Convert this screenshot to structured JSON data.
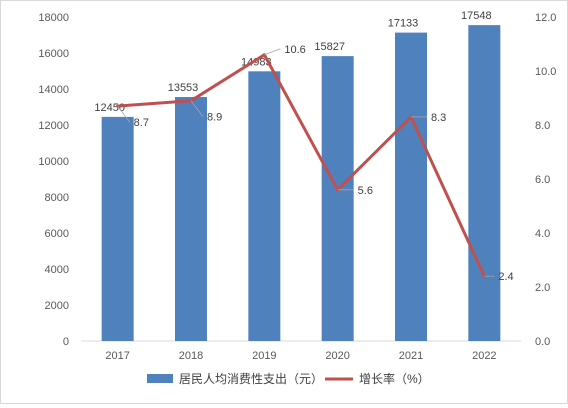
{
  "chart_data": {
    "type": "bar+line",
    "categories": [
      "2017",
      "2018",
      "2019",
      "2020",
      "2021",
      "2022"
    ],
    "series": [
      {
        "name": "居民人均消费性支出（元）",
        "type": "bar",
        "axis": "left",
        "values": [
          12450,
          13553,
          14983,
          15827,
          17133,
          17548
        ],
        "color": "#4f81bd"
      },
      {
        "name": "增长率（%）",
        "type": "line",
        "axis": "right",
        "values": [
          8.7,
          8.9,
          10.6,
          5.6,
          8.3,
          2.4
        ],
        "labels": [
          "8.7",
          "8.9",
          "10.6",
          "5.6",
          "8.3",
          "2.4"
        ],
        "color": "#c0504d"
      }
    ],
    "bar_labels": [
      "12450",
      "13553",
      "14983",
      "15827",
      "17133",
      "17548"
    ],
    "ylim_left": [
      0,
      18000
    ],
    "ylim_right": [
      0,
      12
    ],
    "yticks_left": [
      "0",
      "2000",
      "4000",
      "6000",
      "8000",
      "10000",
      "12000",
      "14000",
      "16000",
      "18000"
    ],
    "yticks_right": [
      "0.0",
      "2.0",
      "4.0",
      "6.0",
      "8.0",
      "10.0",
      "12.0"
    ],
    "grid": false,
    "legend_position": "bottom"
  }
}
